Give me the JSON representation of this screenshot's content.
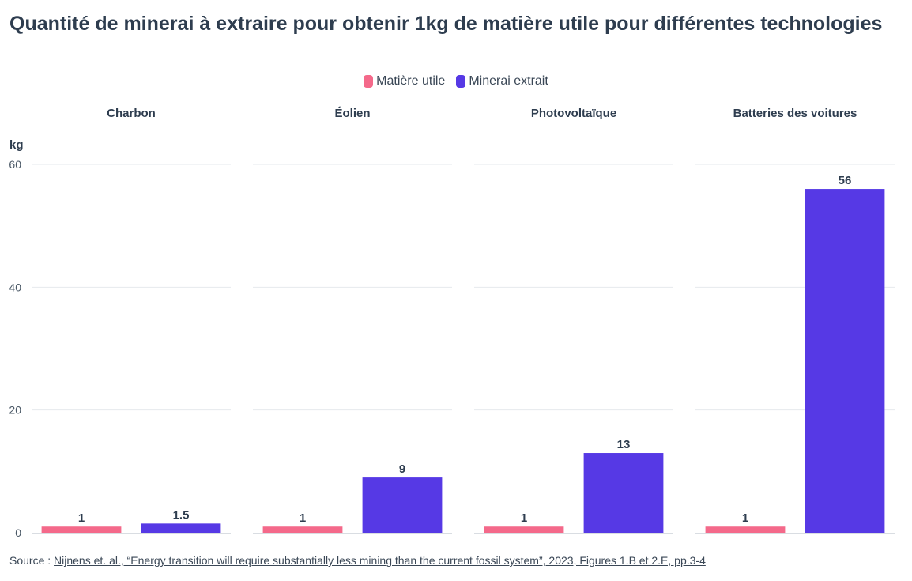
{
  "title": "Quantité de minerai à extraire pour obtenir 1kg de matière utile pour différentes technologies",
  "legend": [
    {
      "label": "Matière utile",
      "color": "#f4698a"
    },
    {
      "label": "Minerai extrait",
      "color": "#5639e5"
    }
  ],
  "source": {
    "prefix": "Source : ",
    "link_text": "Nijnens et. al., “Energy transition will require substantially less mining than the current fossil system”, 2023, Figures 1.B et 2.E, pp.3-4"
  },
  "chart_data": {
    "type": "bar",
    "ylabel": "kg",
    "ylim": [
      0,
      60
    ],
    "yticks": [
      0,
      20,
      40,
      60
    ],
    "grid": true,
    "legend_position": "top-center",
    "facets": [
      {
        "title": "Charbon",
        "values": [
          1,
          1.5
        ],
        "labels": [
          "1",
          "1.5"
        ]
      },
      {
        "title": "Éolien",
        "values": [
          1,
          9
        ],
        "labels": [
          "1",
          "9"
        ]
      },
      {
        "title": "Photovoltaïque",
        "values": [
          1,
          13
        ],
        "labels": [
          "1",
          "13"
        ]
      },
      {
        "title": "Batteries des voitures",
        "values": [
          1,
          56
        ],
        "labels": [
          "1",
          "56"
        ]
      }
    ],
    "series": [
      {
        "name": "Matière utile",
        "color": "#f4698a"
      },
      {
        "name": "Minerai extrait",
        "color": "#5639e5"
      }
    ]
  }
}
